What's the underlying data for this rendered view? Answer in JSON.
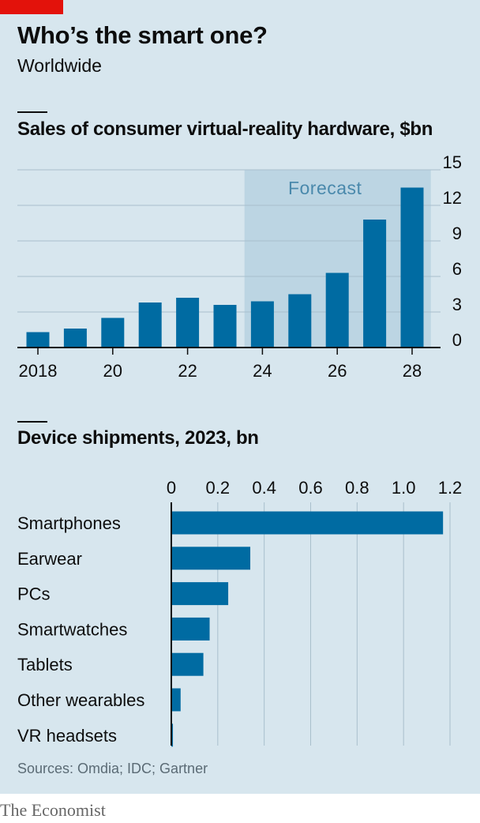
{
  "header": {
    "title": "Who’s the smart one?",
    "subtitle": "Worldwide"
  },
  "colors": {
    "panel_bg": "#d7e6ee",
    "bar": "#006ba2",
    "forecast_shade": "#bcd5e3",
    "forecast_text": "#4a89ac",
    "accent_red": "#e3120b"
  },
  "chart_data": [
    {
      "type": "bar",
      "title": "Sales of consumer virtual-reality hardware, $bn",
      "categories": [
        "2018",
        "2019",
        "2020",
        "2021",
        "2022",
        "2023",
        "2024",
        "2025",
        "2026",
        "2027",
        "2028"
      ],
      "x_tick_labels": [
        {
          "category": "2018",
          "label": "2018"
        },
        {
          "category": "2020",
          "label": "20"
        },
        {
          "category": "2022",
          "label": "22"
        },
        {
          "category": "2024",
          "label": "24"
        },
        {
          "category": "2026",
          "label": "26"
        },
        {
          "category": "2028",
          "label": "28"
        }
      ],
      "values": [
        1.3,
        1.6,
        2.5,
        3.8,
        4.2,
        3.6,
        3.9,
        4.5,
        6.3,
        10.8,
        13.5
      ],
      "ylim": [
        0,
        15
      ],
      "y_ticks": [
        0,
        3,
        6,
        9,
        12,
        15
      ],
      "y_axis_side": "right",
      "grid": true,
      "forecast": {
        "label": "Forecast",
        "from": "2024",
        "to": "2028"
      }
    },
    {
      "type": "bar",
      "orientation": "horizontal",
      "title": "Device shipments, 2023, bn",
      "categories": [
        "Smartphones",
        "Earwear",
        "PCs",
        "Smartwatches",
        "Tablets",
        "Other wearables",
        "VR headsets"
      ],
      "values": [
        1.17,
        0.34,
        0.245,
        0.165,
        0.138,
        0.04,
        0.007
      ],
      "xlim": [
        0,
        1.2
      ],
      "x_ticks": [
        "0",
        "0.2",
        "0.4",
        "0.6",
        "0.8",
        "1.0",
        "1.2"
      ],
      "x_axis_side": "top",
      "grid": true
    }
  ],
  "footer": {
    "source": "Sources: Omdia; IDC; Gartner",
    "brand": "The Economist"
  }
}
